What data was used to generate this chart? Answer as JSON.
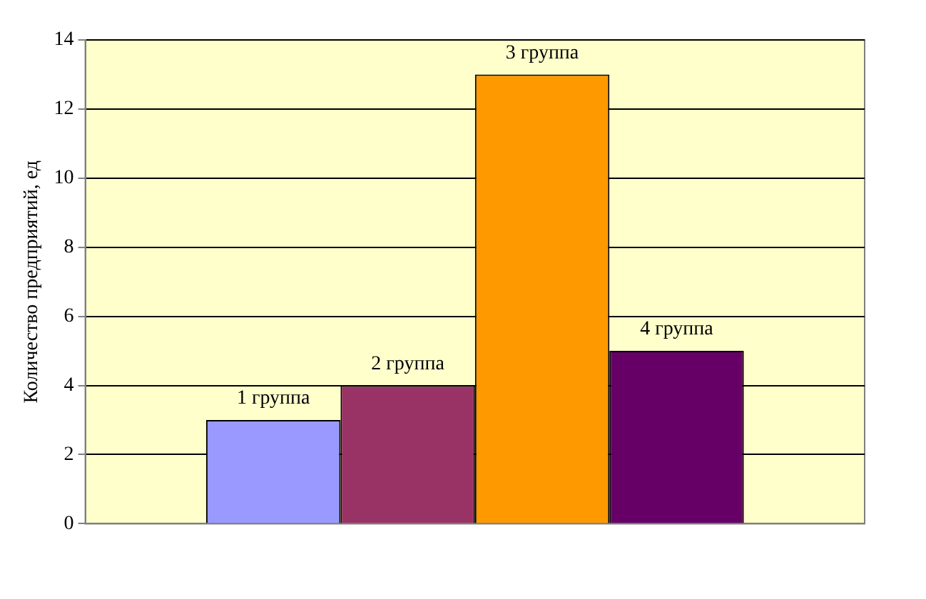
{
  "chart_data": {
    "type": "bar",
    "ylabel": "Количество предприятий, ед",
    "categories": [
      null
    ],
    "series": [
      {
        "name": "1 группа",
        "color": "#9999ff",
        "values": [
          3
        ]
      },
      {
        "name": "2 группа",
        "color": "#993366",
        "values": [
          4
        ]
      },
      {
        "name": "3 группа",
        "color": "#ff9900",
        "values": [
          13
        ]
      },
      {
        "name": "4 группа",
        "color": "#660066",
        "values": [
          5
        ]
      }
    ],
    "ylim": [
      0,
      14
    ],
    "yticks": [
      0,
      2,
      4,
      6,
      8,
      10,
      12,
      14
    ],
    "grid": "y",
    "legend": false
  }
}
